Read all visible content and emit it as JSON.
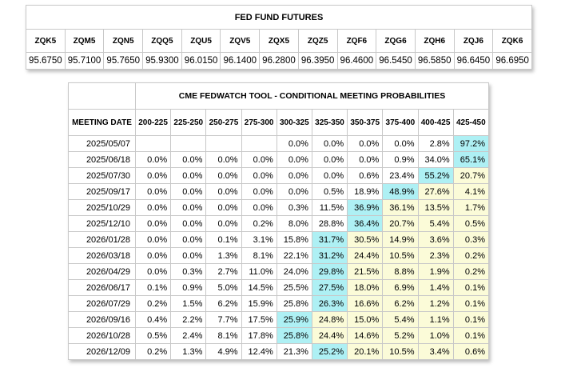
{
  "futures": {
    "title": "FED FUND FUTURES",
    "contracts": [
      "ZQK5",
      "ZQM5",
      "ZQN5",
      "ZQQ5",
      "ZQU5",
      "ZQV5",
      "ZQX5",
      "ZQZ5",
      "ZQF6",
      "ZQG6",
      "ZQH6",
      "ZQJ6",
      "ZQK6"
    ],
    "prices": [
      "95.6750",
      "95.7100",
      "95.7650",
      "95.9300",
      "96.0150",
      "96.1400",
      "96.2800",
      "96.3950",
      "96.4600",
      "96.5450",
      "96.5850",
      "96.6450",
      "96.6950"
    ]
  },
  "fedwatch": {
    "title": "CME FEDWATCH TOOL - CONDITIONAL MEETING PROBABILITIES",
    "date_header": "MEETING DATE",
    "ranges": [
      "200-225",
      "225-250",
      "250-275",
      "275-300",
      "300-325",
      "325-350",
      "350-375",
      "375-400",
      "400-425",
      "425-450"
    ],
    "rows": [
      {
        "date": "2025/05/07",
        "cells": [
          {
            "v": "",
            "s": ""
          },
          {
            "v": "",
            "s": ""
          },
          {
            "v": "",
            "s": ""
          },
          {
            "v": "",
            "s": ""
          },
          {
            "v": "0.0%",
            "s": ""
          },
          {
            "v": "0.0%",
            "s": ""
          },
          {
            "v": "0.0%",
            "s": ""
          },
          {
            "v": "0.0%",
            "s": ""
          },
          {
            "v": "2.8%",
            "s": ""
          },
          {
            "v": "97.2%",
            "s": "hl"
          }
        ]
      },
      {
        "date": "2025/06/18",
        "cells": [
          {
            "v": "0.0%",
            "s": ""
          },
          {
            "v": "0.0%",
            "s": ""
          },
          {
            "v": "0.0%",
            "s": ""
          },
          {
            "v": "0.0%",
            "s": ""
          },
          {
            "v": "0.0%",
            "s": ""
          },
          {
            "v": "0.0%",
            "s": ""
          },
          {
            "v": "0.0%",
            "s": ""
          },
          {
            "v": "0.9%",
            "s": ""
          },
          {
            "v": "34.0%",
            "s": ""
          },
          {
            "v": "65.1%",
            "s": "hl"
          }
        ]
      },
      {
        "date": "2025/07/30",
        "cells": [
          {
            "v": "0.0%",
            "s": ""
          },
          {
            "v": "0.0%",
            "s": ""
          },
          {
            "v": "0.0%",
            "s": ""
          },
          {
            "v": "0.0%",
            "s": ""
          },
          {
            "v": "0.0%",
            "s": ""
          },
          {
            "v": "0.0%",
            "s": ""
          },
          {
            "v": "0.6%",
            "s": ""
          },
          {
            "v": "23.4%",
            "s": ""
          },
          {
            "v": "55.2%",
            "s": "hl"
          },
          {
            "v": "20.7%",
            "s": "yl"
          }
        ]
      },
      {
        "date": "2025/09/17",
        "cells": [
          {
            "v": "0.0%",
            "s": ""
          },
          {
            "v": "0.0%",
            "s": ""
          },
          {
            "v": "0.0%",
            "s": ""
          },
          {
            "v": "0.0%",
            "s": ""
          },
          {
            "v": "0.0%",
            "s": ""
          },
          {
            "v": "0.5%",
            "s": ""
          },
          {
            "v": "18.9%",
            "s": ""
          },
          {
            "v": "48.9%",
            "s": "hl"
          },
          {
            "v": "27.6%",
            "s": "yl"
          },
          {
            "v": "4.1%",
            "s": "yl"
          }
        ]
      },
      {
        "date": "2025/10/29",
        "cells": [
          {
            "v": "0.0%",
            "s": ""
          },
          {
            "v": "0.0%",
            "s": ""
          },
          {
            "v": "0.0%",
            "s": ""
          },
          {
            "v": "0.0%",
            "s": ""
          },
          {
            "v": "0.3%",
            "s": ""
          },
          {
            "v": "11.5%",
            "s": ""
          },
          {
            "v": "36.9%",
            "s": "hl"
          },
          {
            "v": "36.1%",
            "s": "yl"
          },
          {
            "v": "13.5%",
            "s": "yl"
          },
          {
            "v": "1.7%",
            "s": "yl"
          }
        ]
      },
      {
        "date": "2025/12/10",
        "cells": [
          {
            "v": "0.0%",
            "s": ""
          },
          {
            "v": "0.0%",
            "s": ""
          },
          {
            "v": "0.0%",
            "s": ""
          },
          {
            "v": "0.2%",
            "s": ""
          },
          {
            "v": "8.0%",
            "s": ""
          },
          {
            "v": "28.8%",
            "s": ""
          },
          {
            "v": "36.4%",
            "s": "hl"
          },
          {
            "v": "20.7%",
            "s": "yl"
          },
          {
            "v": "5.4%",
            "s": "yl"
          },
          {
            "v": "0.5%",
            "s": "yl"
          }
        ]
      },
      {
        "date": "2026/01/28",
        "cells": [
          {
            "v": "0.0%",
            "s": ""
          },
          {
            "v": "0.0%",
            "s": ""
          },
          {
            "v": "0.1%",
            "s": ""
          },
          {
            "v": "3.1%",
            "s": ""
          },
          {
            "v": "15.8%",
            "s": ""
          },
          {
            "v": "31.7%",
            "s": "hl"
          },
          {
            "v": "30.5%",
            "s": "yl"
          },
          {
            "v": "14.9%",
            "s": "yl"
          },
          {
            "v": "3.6%",
            "s": "yl"
          },
          {
            "v": "0.3%",
            "s": "yl"
          }
        ]
      },
      {
        "date": "2026/03/18",
        "cells": [
          {
            "v": "0.0%",
            "s": ""
          },
          {
            "v": "0.0%",
            "s": ""
          },
          {
            "v": "1.3%",
            "s": ""
          },
          {
            "v": "8.1%",
            "s": ""
          },
          {
            "v": "22.1%",
            "s": ""
          },
          {
            "v": "31.2%",
            "s": "hl"
          },
          {
            "v": "24.4%",
            "s": "yl"
          },
          {
            "v": "10.5%",
            "s": "yl"
          },
          {
            "v": "2.3%",
            "s": "yl"
          },
          {
            "v": "0.2%",
            "s": "yl"
          }
        ]
      },
      {
        "date": "2026/04/29",
        "cells": [
          {
            "v": "0.0%",
            "s": ""
          },
          {
            "v": "0.3%",
            "s": ""
          },
          {
            "v": "2.7%",
            "s": ""
          },
          {
            "v": "11.0%",
            "s": ""
          },
          {
            "v": "24.0%",
            "s": ""
          },
          {
            "v": "29.8%",
            "s": "hl"
          },
          {
            "v": "21.5%",
            "s": "yl"
          },
          {
            "v": "8.8%",
            "s": "yl"
          },
          {
            "v": "1.9%",
            "s": "yl"
          },
          {
            "v": "0.2%",
            "s": "yl"
          }
        ]
      },
      {
        "date": "2026/06/17",
        "cells": [
          {
            "v": "0.1%",
            "s": ""
          },
          {
            "v": "0.9%",
            "s": ""
          },
          {
            "v": "5.0%",
            "s": ""
          },
          {
            "v": "14.5%",
            "s": ""
          },
          {
            "v": "25.5%",
            "s": ""
          },
          {
            "v": "27.5%",
            "s": "hl"
          },
          {
            "v": "18.0%",
            "s": "yl"
          },
          {
            "v": "6.9%",
            "s": "yl"
          },
          {
            "v": "1.4%",
            "s": "yl"
          },
          {
            "v": "0.1%",
            "s": "yl"
          }
        ]
      },
      {
        "date": "2026/07/29",
        "cells": [
          {
            "v": "0.2%",
            "s": ""
          },
          {
            "v": "1.5%",
            "s": ""
          },
          {
            "v": "6.2%",
            "s": ""
          },
          {
            "v": "15.9%",
            "s": ""
          },
          {
            "v": "25.8%",
            "s": ""
          },
          {
            "v": "26.3%",
            "s": "hl"
          },
          {
            "v": "16.6%",
            "s": "yl"
          },
          {
            "v": "6.2%",
            "s": "yl"
          },
          {
            "v": "1.2%",
            "s": "yl"
          },
          {
            "v": "0.1%",
            "s": "yl"
          }
        ]
      },
      {
        "date": "2026/09/16",
        "cells": [
          {
            "v": "0.4%",
            "s": ""
          },
          {
            "v": "2.2%",
            "s": ""
          },
          {
            "v": "7.7%",
            "s": ""
          },
          {
            "v": "17.5%",
            "s": ""
          },
          {
            "v": "25.9%",
            "s": "hl"
          },
          {
            "v": "24.8%",
            "s": "yl"
          },
          {
            "v": "15.0%",
            "s": "yl"
          },
          {
            "v": "5.4%",
            "s": "yl"
          },
          {
            "v": "1.1%",
            "s": "yl"
          },
          {
            "v": "0.1%",
            "s": "yl"
          }
        ]
      },
      {
        "date": "2026/10/28",
        "cells": [
          {
            "v": "0.5%",
            "s": ""
          },
          {
            "v": "2.4%",
            "s": ""
          },
          {
            "v": "8.1%",
            "s": ""
          },
          {
            "v": "17.8%",
            "s": ""
          },
          {
            "v": "25.8%",
            "s": "hl"
          },
          {
            "v": "24.4%",
            "s": "yl"
          },
          {
            "v": "14.6%",
            "s": "yl"
          },
          {
            "v": "5.2%",
            "s": "yl"
          },
          {
            "v": "1.0%",
            "s": "yl"
          },
          {
            "v": "0.1%",
            "s": "yl"
          }
        ]
      },
      {
        "date": "2026/12/09",
        "cells": [
          {
            "v": "0.2%",
            "s": ""
          },
          {
            "v": "1.3%",
            "s": ""
          },
          {
            "v": "4.9%",
            "s": ""
          },
          {
            "v": "12.4%",
            "s": ""
          },
          {
            "v": "21.3%",
            "s": ""
          },
          {
            "v": "25.2%",
            "s": "hl"
          },
          {
            "v": "20.1%",
            "s": "yl"
          },
          {
            "v": "10.5%",
            "s": "yl"
          },
          {
            "v": "3.4%",
            "s": "yl"
          },
          {
            "v": "0.6%",
            "s": "yl"
          }
        ]
      }
    ]
  },
  "colors": {
    "highlight": "#aef0f4",
    "yellow": "#fbfbd8",
    "border": "#c8c8c8"
  }
}
